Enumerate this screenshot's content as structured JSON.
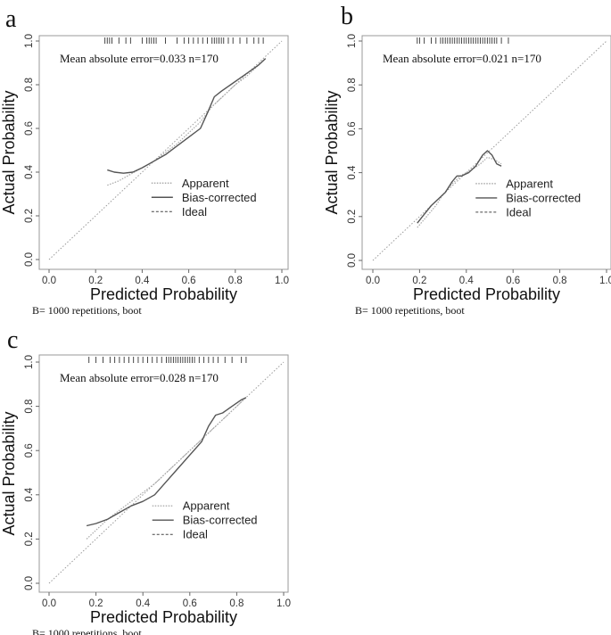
{
  "chart_data": [
    {
      "type": "line",
      "panel": "a",
      "ylabel": "Actual Probability",
      "xlabel": "Predicted Probability",
      "xlim": [
        0,
        1
      ],
      "ylim": [
        0,
        1
      ],
      "ticks": [
        "0.0",
        "0.2",
        "0.4",
        "0.6",
        "0.8",
        "1.0"
      ],
      "annotation": "Mean absolute error=0.033 n=170",
      "caption": "B= 1000 repetitions, boot",
      "legend": {
        "position": "center-right",
        "apparent": "Apparent",
        "bias": "Bias-corrected",
        "ideal": "Ideal"
      },
      "series": [
        {
          "name": "Apparent",
          "style": "dotted",
          "x": [
            0.25,
            0.3,
            0.35,
            0.4,
            0.45,
            0.5,
            0.55,
            0.6,
            0.65,
            0.7,
            0.75,
            0.8,
            0.85,
            0.9,
            0.93
          ],
          "y": [
            0.34,
            0.36,
            0.39,
            0.42,
            0.45,
            0.49,
            0.53,
            0.58,
            0.63,
            0.7,
            0.75,
            0.8,
            0.84,
            0.89,
            0.92
          ]
        },
        {
          "name": "Bias-corrected",
          "style": "solid",
          "x": [
            0.25,
            0.28,
            0.32,
            0.36,
            0.4,
            0.45,
            0.5,
            0.55,
            0.6,
            0.65,
            0.68,
            0.71,
            0.74,
            0.78,
            0.82,
            0.86,
            0.9,
            0.93
          ],
          "y": [
            0.41,
            0.4,
            0.395,
            0.4,
            0.42,
            0.45,
            0.48,
            0.52,
            0.56,
            0.6,
            0.67,
            0.745,
            0.77,
            0.8,
            0.83,
            0.86,
            0.89,
            0.92
          ]
        }
      ],
      "rug": [
        0.24,
        0.25,
        0.26,
        0.27,
        0.3,
        0.33,
        0.35,
        0.4,
        0.42,
        0.43,
        0.44,
        0.45,
        0.46,
        0.5,
        0.55,
        0.58,
        0.6,
        0.62,
        0.64,
        0.66,
        0.68,
        0.7,
        0.71,
        0.72,
        0.73,
        0.74,
        0.75,
        0.77,
        0.79,
        0.82,
        0.85,
        0.88,
        0.9,
        0.92
      ]
    },
    {
      "type": "line",
      "panel": "b",
      "ylabel": "Actual Probability",
      "xlabel": "Predicted Probability",
      "xlim": [
        0,
        1
      ],
      "ylim": [
        0,
        1
      ],
      "ticks": [
        "0.0",
        "0.2",
        "0.4",
        "0.6",
        "0.8",
        "1.0"
      ],
      "annotation": "Mean absolute error=0.021 n=170",
      "caption": "B= 1000 repetitions, boot",
      "legend": {
        "position": "center-right",
        "apparent": "Apparent",
        "bias": "Bias-corrected",
        "ideal": "Ideal"
      },
      "series": [
        {
          "name": "Apparent",
          "style": "dotted",
          "x": [
            0.19,
            0.23,
            0.27,
            0.3,
            0.34,
            0.38,
            0.42,
            0.46,
            0.49,
            0.52,
            0.55
          ],
          "y": [
            0.15,
            0.2,
            0.25,
            0.3,
            0.35,
            0.39,
            0.41,
            0.44,
            0.47,
            0.46,
            0.44
          ]
        },
        {
          "name": "Bias-corrected",
          "style": "solid",
          "x": [
            0.19,
            0.22,
            0.25,
            0.28,
            0.31,
            0.34,
            0.36,
            0.38,
            0.41,
            0.44,
            0.47,
            0.49,
            0.51,
            0.53,
            0.55
          ],
          "y": [
            0.17,
            0.21,
            0.25,
            0.28,
            0.31,
            0.36,
            0.385,
            0.385,
            0.4,
            0.43,
            0.48,
            0.5,
            0.48,
            0.44,
            0.43
          ]
        }
      ],
      "rug": [
        0.19,
        0.2,
        0.22,
        0.25,
        0.27,
        0.29,
        0.3,
        0.31,
        0.32,
        0.33,
        0.34,
        0.35,
        0.36,
        0.37,
        0.38,
        0.39,
        0.4,
        0.41,
        0.42,
        0.43,
        0.44,
        0.45,
        0.46,
        0.47,
        0.48,
        0.49,
        0.5,
        0.51,
        0.52,
        0.53,
        0.55,
        0.58
      ]
    },
    {
      "type": "line",
      "panel": "c",
      "ylabel": "Actual Probability",
      "xlabel": "Predicted Probability",
      "xlim": [
        0,
        1
      ],
      "ylim": [
        0,
        1
      ],
      "ticks": [
        "0.0",
        "0.2",
        "0.4",
        "0.6",
        "0.8",
        "1.0"
      ],
      "annotation": "Mean absolute error=0.028 n=170",
      "caption": "B= 1000 repetitions, boot",
      "legend": {
        "position": "center-right",
        "apparent": "Apparent",
        "bias": "Bias-corrected",
        "ideal": "Ideal"
      },
      "series": [
        {
          "name": "Apparent",
          "style": "dotted",
          "x": [
            0.16,
            0.2,
            0.25,
            0.3,
            0.35,
            0.4,
            0.45,
            0.5,
            0.55,
            0.6,
            0.65,
            0.7,
            0.75,
            0.8,
            0.84
          ],
          "y": [
            0.2,
            0.24,
            0.29,
            0.33,
            0.37,
            0.41,
            0.45,
            0.5,
            0.55,
            0.6,
            0.65,
            0.7,
            0.75,
            0.8,
            0.84
          ]
        },
        {
          "name": "Bias-corrected",
          "style": "solid",
          "x": [
            0.16,
            0.2,
            0.25,
            0.3,
            0.35,
            0.4,
            0.45,
            0.5,
            0.55,
            0.6,
            0.65,
            0.68,
            0.71,
            0.74,
            0.78,
            0.82,
            0.84
          ],
          "y": [
            0.26,
            0.27,
            0.29,
            0.32,
            0.35,
            0.37,
            0.4,
            0.46,
            0.52,
            0.58,
            0.64,
            0.71,
            0.76,
            0.77,
            0.8,
            0.83,
            0.84
          ]
        }
      ],
      "rug": [
        0.17,
        0.2,
        0.23,
        0.26,
        0.28,
        0.3,
        0.32,
        0.34,
        0.36,
        0.38,
        0.4,
        0.42,
        0.44,
        0.46,
        0.48,
        0.5,
        0.51,
        0.52,
        0.53,
        0.54,
        0.55,
        0.56,
        0.57,
        0.58,
        0.59,
        0.6,
        0.61,
        0.62,
        0.64,
        0.66,
        0.68,
        0.7,
        0.72,
        0.75,
        0.78,
        0.82,
        0.84
      ]
    }
  ]
}
